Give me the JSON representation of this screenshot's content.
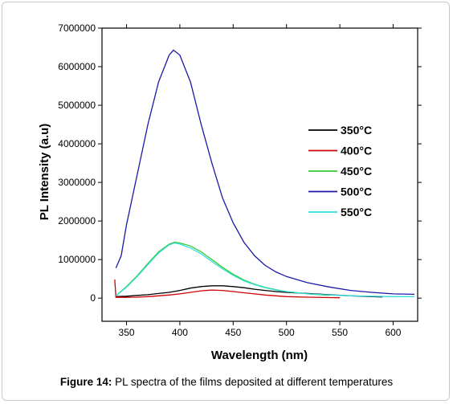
{
  "figure": {
    "label": "Figure 14:",
    "caption": "PL spectra of the films deposited at different temperatures"
  },
  "chart_data": {
    "type": "line",
    "xlabel": "Wavelength  (nm)",
    "ylabel": "PL Intensity  (a.u)",
    "xlim": [
      327,
      623
    ],
    "ylim": [
      -600000,
      7000000
    ],
    "xticks": [
      350,
      400,
      450,
      500,
      550,
      600
    ],
    "yticks": [
      0,
      1000000,
      2000000,
      3000000,
      4000000,
      5000000,
      6000000,
      7000000
    ],
    "ytick_labels": [
      "0",
      "1000000",
      "2000000",
      "3000000",
      "4000000",
      "5000000",
      "6000000",
      "7000000"
    ],
    "legend_position": "right-center",
    "series": [
      {
        "name": "350°C",
        "color": "#000000",
        "points": [
          [
            340,
            40000
          ],
          [
            350,
            50000
          ],
          [
            360,
            70000
          ],
          [
            370,
            90000
          ],
          [
            380,
            120000
          ],
          [
            390,
            150000
          ],
          [
            400,
            200000
          ],
          [
            410,
            260000
          ],
          [
            420,
            300000
          ],
          [
            430,
            320000
          ],
          [
            440,
            320000
          ],
          [
            450,
            300000
          ],
          [
            460,
            270000
          ],
          [
            470,
            230000
          ],
          [
            480,
            200000
          ],
          [
            490,
            170000
          ],
          [
            500,
            150000
          ],
          [
            520,
            120000
          ],
          [
            540,
            90000
          ],
          [
            560,
            60000
          ],
          [
            580,
            40000
          ],
          [
            590,
            30000
          ]
        ]
      },
      {
        "name": "400°C",
        "color": "#cc0000",
        "points": [
          [
            339,
            480000
          ],
          [
            340,
            20000
          ],
          [
            350,
            20000
          ],
          [
            360,
            25000
          ],
          [
            370,
            40000
          ],
          [
            380,
            60000
          ],
          [
            390,
            80000
          ],
          [
            400,
            110000
          ],
          [
            410,
            150000
          ],
          [
            420,
            190000
          ],
          [
            430,
            210000
          ],
          [
            440,
            200000
          ],
          [
            450,
            170000
          ],
          [
            460,
            140000
          ],
          [
            470,
            110000
          ],
          [
            480,
            80000
          ],
          [
            490,
            60000
          ],
          [
            500,
            40000
          ],
          [
            520,
            25000
          ],
          [
            540,
            15000
          ],
          [
            550,
            10000
          ]
        ]
      },
      {
        "name": "450°C",
        "color": "#33cc33",
        "points": [
          [
            340,
            60000
          ],
          [
            350,
            300000
          ],
          [
            360,
            580000
          ],
          [
            370,
            900000
          ],
          [
            380,
            1200000
          ],
          [
            390,
            1400000
          ],
          [
            395,
            1450000
          ],
          [
            400,
            1430000
          ],
          [
            410,
            1350000
          ],
          [
            420,
            1200000
          ],
          [
            430,
            1000000
          ],
          [
            440,
            800000
          ],
          [
            450,
            620000
          ],
          [
            460,
            470000
          ],
          [
            470,
            360000
          ],
          [
            480,
            280000
          ],
          [
            490,
            220000
          ],
          [
            500,
            170000
          ],
          [
            520,
            110000
          ],
          [
            540,
            70000
          ]
        ]
      },
      {
        "name": "500°C",
        "color": "#1a1aa6",
        "points": [
          [
            340,
            780000
          ],
          [
            345,
            1100000
          ],
          [
            350,
            1900000
          ],
          [
            360,
            3200000
          ],
          [
            370,
            4500000
          ],
          [
            380,
            5600000
          ],
          [
            390,
            6300000
          ],
          [
            394,
            6430000
          ],
          [
            400,
            6300000
          ],
          [
            410,
            5600000
          ],
          [
            420,
            4500000
          ],
          [
            430,
            3500000
          ],
          [
            440,
            2600000
          ],
          [
            450,
            1950000
          ],
          [
            460,
            1450000
          ],
          [
            470,
            1100000
          ],
          [
            480,
            850000
          ],
          [
            490,
            680000
          ],
          [
            500,
            560000
          ],
          [
            520,
            400000
          ],
          [
            540,
            290000
          ],
          [
            560,
            200000
          ],
          [
            580,
            150000
          ],
          [
            600,
            110000
          ],
          [
            620,
            100000
          ]
        ]
      },
      {
        "name": "550°C",
        "color": "#33dddd",
        "points": [
          [
            340,
            60000
          ],
          [
            350,
            280000
          ],
          [
            360,
            560000
          ],
          [
            370,
            870000
          ],
          [
            380,
            1170000
          ],
          [
            390,
            1380000
          ],
          [
            395,
            1430000
          ],
          [
            400,
            1400000
          ],
          [
            410,
            1300000
          ],
          [
            420,
            1150000
          ],
          [
            430,
            950000
          ],
          [
            440,
            760000
          ],
          [
            450,
            590000
          ],
          [
            460,
            450000
          ],
          [
            470,
            350000
          ],
          [
            480,
            270000
          ],
          [
            490,
            210000
          ],
          [
            500,
            170000
          ],
          [
            520,
            110000
          ],
          [
            540,
            80000
          ],
          [
            560,
            60000
          ],
          [
            580,
            50000
          ],
          [
            600,
            40000
          ],
          [
            620,
            40000
          ]
        ]
      }
    ]
  }
}
